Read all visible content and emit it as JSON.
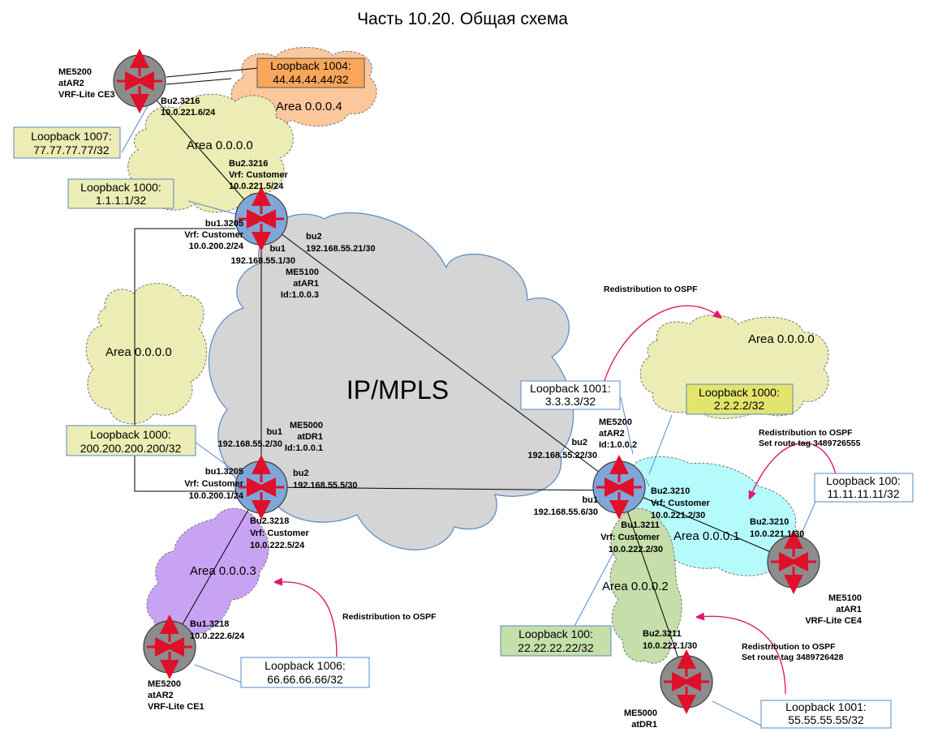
{
  "title": "Часть 10.20. Общая схема",
  "core_label": "IP/MPLS",
  "colors": {
    "core_cloud": "#d5d5d5",
    "area0": "#ecedb4",
    "area4": "#fcc79b",
    "area3": "#c9a3f3",
    "area2": "#c6deaa",
    "area1": "#b6fbfb",
    "router_pe": "#7fa6d8",
    "router_ce": "#8c8c8c",
    "arrow": "#e0102a",
    "redistribution": "#dd1a72"
  },
  "areas": {
    "a4": "Area 0.0.0.4",
    "a0_top": "Area 0.0.0.0",
    "a0_left": "Area 0.0.0.0",
    "a0_right": "Area 0.0.0.0",
    "a3": "Area 0.0.0.3",
    "a2": "Area 0.0.0.2",
    "a1": "Area 0.0.0.1"
  },
  "boxes": {
    "lb1004": {
      "line1": "Loopback 1004:",
      "line2": "44.44.44.44/32"
    },
    "lb1007": {
      "line1": "Loopback 1007:",
      "line2": "77.77.77.77/32"
    },
    "lb1000_a": {
      "line1": "Loopback 1000:",
      "line2": "1.1.1.1/32"
    },
    "lb1000_b": {
      "line1": "Loopback 1000:",
      "line2": "200.200.200.200/32"
    },
    "lb1001_a": {
      "line1": "Loopback 1001:",
      "line2": "3.3.3.3/32"
    },
    "lb1000_c": {
      "line1": "Loopback 1000:",
      "line2": "2.2.2.2/32"
    },
    "lb100_a": {
      "line1": "Loopback 100:",
      "line2": "11.11.11.11/32"
    },
    "lb100_b": {
      "line1": "Loopback 100:",
      "line2": "22.22.22.22/32"
    },
    "lb1006": {
      "line1": "Loopback 1006:",
      "line2": "66.66.66.66/32"
    },
    "lb1001_b": {
      "line1": "Loopback 1001:",
      "line2": "55.55.55.55/32"
    }
  },
  "routers": {
    "ce3": {
      "line1": "ME5200",
      "line2": "atAR2",
      "line3": "VRF-Lite CE3"
    },
    "ar1": {
      "line1": "ME5100",
      "line2": "atAR1",
      "line3": "Id:1.0.0.3"
    },
    "dr1": {
      "line1": "ME5000",
      "line2": "atDR1",
      "line3": "Id:1.0.0.1"
    },
    "ar2": {
      "line1": "ME5200",
      "line2": "atAR2",
      "line3": "Id:1.0.0.2"
    },
    "ce4": {
      "line1": "ME5100",
      "line2": "atAR1",
      "line3": "VRF-Lite CE4"
    },
    "ce2": {
      "line1": "ME5000",
      "line2": "atDR1"
    },
    "ce1": {
      "line1": "ME5200",
      "line2": "atAR2",
      "line3": "VRF-Lite CE1"
    }
  },
  "links": {
    "ce3_bu": {
      "line1": "Bu2.3216",
      "line2": "10.0.221.6/24"
    },
    "ar1_bu2": {
      "line1": "Bu2.3216",
      "line2": "Vrf: Customer",
      "line3": "10.0.221.5/24"
    },
    "ar1_bu13205": {
      "line1": "bu1.3205",
      "line2": "Vrf: Customer",
      "line3": "10.0.200.2/24"
    },
    "ar1_bu1": {
      "line1": "bu1",
      "line2": "192.168.55.1/30"
    },
    "ar1_bu2b": {
      "line1": "bu2",
      "line2": "192.168.55.21/30"
    },
    "dr1_bu1": {
      "line1": "bu1",
      "line2": "192.168.55.2/30"
    },
    "dr1_bu13205": {
      "line1": "bu1.3205",
      "line2": "Vrf: Customer",
      "line3": "10.0.200.1/24"
    },
    "dr1_bu2": {
      "line1": "bu2",
      "line2": "192.168.55.5/30"
    },
    "dr1_bu23218": {
      "line1": "Bu2.3218",
      "line2": "Vrf: Customer",
      "line3": "10.0.222.5/24"
    },
    "ce1_bu": {
      "line1": "Bu1.3218",
      "line2": "10.0.222.6/24"
    },
    "ar2_bu2": {
      "line1": "bu2",
      "line2": "192.168.55.22/30"
    },
    "ar2_bu1": {
      "line1": "bu1",
      "line2": "192.168.55.6/30"
    },
    "ar2_bu23210": {
      "line1": "Bu2.3210",
      "line2": "Vrf: Customer",
      "line3": "10.0.221.2/30"
    },
    "ar2_bu13211": {
      "line1": "Bu1.3211",
      "line2": "Vrf: Customer",
      "line3": "10.0.222.2/30"
    },
    "ce4_bu": {
      "line1": "Bu2.3210",
      "line2": "10.0.221.1/30"
    },
    "ce2_bu": {
      "line1": "Bu2.3211",
      "line2": "10.0.222.1/30"
    }
  },
  "redistribution": {
    "top": {
      "line1": "Redistribution to OSPF"
    },
    "right": {
      "line1": "Redistribution to OSPF",
      "line2": "Set route tag 3489726555"
    },
    "bottom_left": {
      "line1": "Redistribution to OSPF"
    },
    "bottom_right": {
      "line1": "Redistribution to OSPF",
      "line2": "Set route tag 3489726428"
    }
  }
}
